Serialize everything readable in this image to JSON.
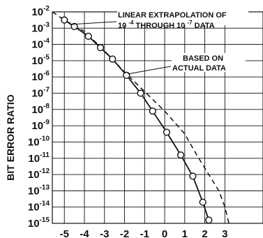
{
  "chart_data": {
    "type": "line",
    "ylabel": "BIT ERROR RATIO",
    "y_scale": "log",
    "grid": true,
    "xlim": [
      -5.6,
      4.9
    ],
    "ylim_exponent": [
      -15,
      -2
    ],
    "x_ticks": [
      "-5",
      "-4",
      "-3",
      "-2",
      "-1",
      "0",
      "1",
      "2",
      "3"
    ],
    "x_tick_values": [
      -5,
      -4,
      -3,
      -2,
      -1,
      0,
      1,
      2,
      3
    ],
    "y_ticks": [
      {
        "base": "10",
        "exp": "-2"
      },
      {
        "base": "10",
        "exp": "-3"
      },
      {
        "base": "10",
        "exp": "-4"
      },
      {
        "base": "10",
        "exp": "-5"
      },
      {
        "base": "10",
        "exp": "-6"
      },
      {
        "base": "10",
        "exp": "-7"
      },
      {
        "base": "10",
        "exp": "-8"
      },
      {
        "base": "10",
        "exp": "-9"
      },
      {
        "base": "10",
        "exp": "-10"
      },
      {
        "base": "10",
        "exp": "-11"
      },
      {
        "base": "10",
        "exp": "-12"
      },
      {
        "base": "10",
        "exp": "-13"
      },
      {
        "base": "10",
        "exp": "-14"
      },
      {
        "base": "10",
        "exp": "-15"
      }
    ],
    "y_tick_exponents": [
      -2,
      -3,
      -4,
      -5,
      -6,
      -7,
      -8,
      -9,
      -10,
      -11,
      -12,
      -13,
      -14,
      -15
    ],
    "series": [
      {
        "name": "BASED ON ACTUAL DATA",
        "style": "solid",
        "markers": "open-circle",
        "x": [
          -5.0,
          -4.5,
          -3.8,
          -3.2,
          -2.6,
          -1.9,
          -1.2,
          -0.6,
          0.1,
          0.8,
          1.4,
          1.9,
          2.2
        ],
        "log10_y": [
          -2.5,
          -2.9,
          -3.5,
          -4.2,
          -4.9,
          -5.9,
          -7.0,
          -8.1,
          -9.4,
          -10.8,
          -12.1,
          -13.7,
          -14.8
        ]
      },
      {
        "name": "LINEAR EXTRAPOLATION OF 10-4 THROUGH 10 -7 DATA",
        "style": "dashed",
        "markers": "none",
        "x": [
          -5.6,
          -5.0,
          -4.0,
          -3.0,
          -2.0,
          -1.0,
          0.0,
          1.0,
          1.6,
          2.2,
          2.7,
          3.0,
          3.2
        ],
        "log10_y": [
          -2.0,
          -2.5,
          -3.2,
          -4.4,
          -5.7,
          -6.9,
          -8.1,
          -9.5,
          -10.8,
          -12.0,
          -13.0,
          -14.0,
          -15.0
        ]
      }
    ],
    "annotations": [
      {
        "line1": "LINEAR EXTRAPOLATION OF",
        "line2_prefix": "10",
        "line2_exp1": "-4",
        "line2_middle": " THROUGH 10 ",
        "line2_exp2": "-7",
        "line2_suffix": " DATA",
        "points_to": {
          "x": -5.0,
          "log10_y": -2.5
        }
      },
      {
        "line1": "BASED ON",
        "line2": "ACTUAL DATA",
        "points_to": {
          "x": -2.6,
          "log10_y": -4.9
        }
      }
    ]
  }
}
